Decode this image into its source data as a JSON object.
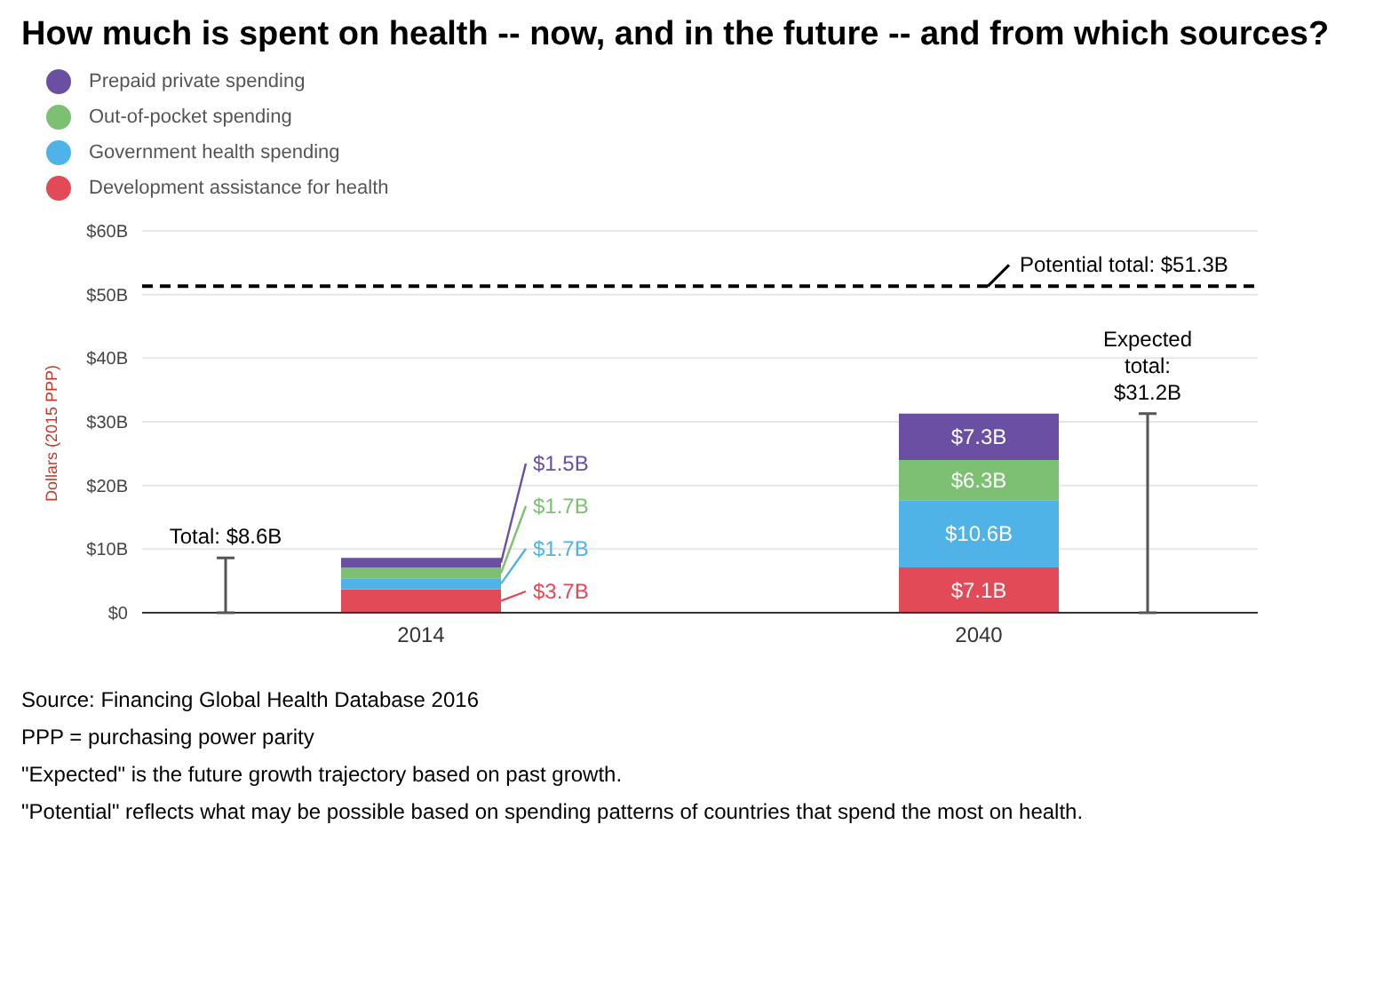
{
  "chart_data": {
    "type": "bar",
    "title": "How much is spent on health -- now, and in the future -- and from which sources?",
    "ylabel": "Dollars (2015 PPP)",
    "categories": [
      "2014",
      "2040"
    ],
    "stacked": true,
    "legend": "top left",
    "grid": "y",
    "series": [
      {
        "name": "Development assistance for health",
        "color": "#e34a57",
        "values": [
          3.7,
          7.1
        ],
        "value_labels": [
          "$3.7B",
          "$7.1B"
        ]
      },
      {
        "name": "Government health spending",
        "color": "#4fb3e8",
        "values": [
          1.7,
          10.6
        ],
        "value_labels": [
          "$1.7B",
          "$10.6B"
        ]
      },
      {
        "name": "Out-of-pocket spending",
        "color": "#7dc073",
        "values": [
          1.7,
          6.3
        ],
        "value_labels": [
          "$1.7B",
          "$6.3B"
        ]
      },
      {
        "name": "Prepaid private spending",
        "color": "#6a4fa3",
        "values": [
          1.5,
          7.3
        ],
        "value_labels": [
          "$1.5B",
          "$7.3B"
        ]
      }
    ],
    "ylim": [
      0,
      60
    ],
    "yticks": [
      {
        "value": 0,
        "label": "$0"
      },
      {
        "value": 10,
        "label": "$10B"
      },
      {
        "value": 20,
        "label": "$20B"
      },
      {
        "value": 30,
        "label": "$30B"
      },
      {
        "value": 40,
        "label": "$40B"
      },
      {
        "value": 50,
        "label": "$50B"
      },
      {
        "value": 60,
        "label": "$60B"
      }
    ],
    "totals": [
      "Total: $8.6B",
      "Expected total: $31.2B"
    ],
    "ref_lines": [
      {
        "axis": "y",
        "value": 51.3,
        "label": "Potential total: $51.3B",
        "line_style": "dashed",
        "color": "#000000"
      }
    ],
    "annotations": [
      "Source: Financing Global Health Database 2016",
      "PPP = purchasing power parity",
      "\"Expected\" is the future growth trajectory based on past growth.",
      "\"Potential\" reflects what may be possible based on spending patterns of countries that spend the most on health."
    ]
  }
}
